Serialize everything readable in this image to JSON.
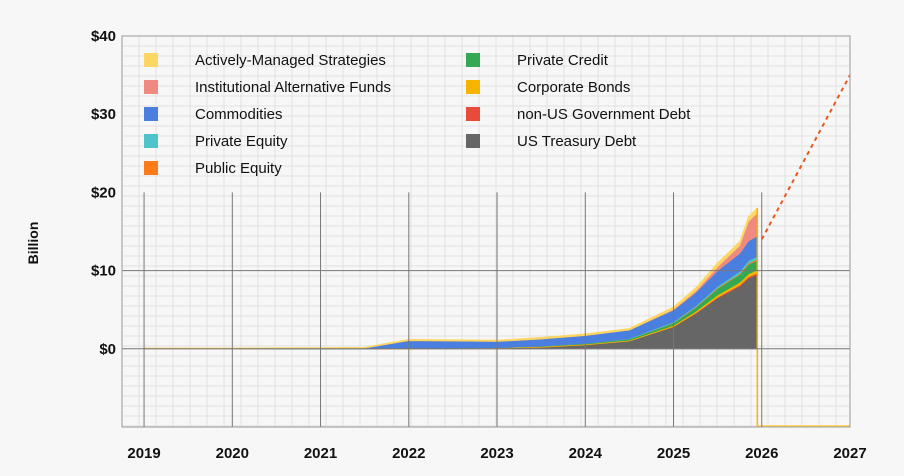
{
  "chart_data": {
    "type": "area",
    "ylabel": "Billion",
    "xlabel": "",
    "title": "",
    "x_ticks": [
      "2019",
      "2020",
      "2021",
      "2022",
      "2023",
      "2024",
      "2025",
      "2026",
      "2027"
    ],
    "y_ticks": [
      "$0",
      "$10",
      "$20",
      "$30",
      "$40"
    ],
    "legend_placement": "top-left",
    "grid": true,
    "x": [
      2019.0,
      2020.0,
      2021.0,
      2021.5,
      2022.0,
      2022.5,
      2023.0,
      2023.5,
      2024.0,
      2024.5,
      2025.0,
      2025.25,
      2025.5,
      2025.75,
      2025.85,
      2025.95
    ],
    "series": [
      {
        "name": "US Treasury Debt",
        "color": "#666666",
        "values": [
          0,
          0,
          0,
          0,
          0,
          0.05,
          0.1,
          0.2,
          0.5,
          1.0,
          2.8,
          4.5,
          6.5,
          8.0,
          9.0,
          9.5
        ]
      },
      {
        "name": "non-US Government Debt",
        "color": "#e84b3a",
        "values": [
          0,
          0,
          0,
          0,
          0,
          0,
          0,
          0,
          0,
          0,
          0.05,
          0.08,
          0.1,
          0.15,
          0.2,
          0.2
        ]
      },
      {
        "name": "Corporate Bonds",
        "color": "#f4b400",
        "values": [
          0,
          0,
          0,
          0,
          0.05,
          0.05,
          0.05,
          0.1,
          0.1,
          0.1,
          0.15,
          0.2,
          0.3,
          0.35,
          0.4,
          0.4
        ]
      },
      {
        "name": "Private Credit",
        "color": "#34a853",
        "values": [
          0,
          0,
          0,
          0,
          0,
          0,
          0,
          0.05,
          0.1,
          0.15,
          0.3,
          0.5,
          0.8,
          1.0,
          1.2,
          1.2
        ]
      },
      {
        "name": "Public Equity",
        "color": "#fa7b17",
        "values": [
          0,
          0,
          0,
          0,
          0,
          0,
          0,
          0,
          0,
          0,
          0.05,
          0.05,
          0.1,
          0.1,
          0.15,
          0.15
        ]
      },
      {
        "name": "Private Equity",
        "color": "#4ec3c9",
        "values": [
          0,
          0,
          0,
          0,
          0,
          0,
          0,
          0,
          0,
          0.05,
          0.1,
          0.15,
          0.2,
          0.3,
          0.35,
          0.35
        ]
      },
      {
        "name": "Commodities",
        "color": "#4a7fe0",
        "values": [
          0,
          0,
          0.05,
          0.1,
          1.0,
          0.9,
          0.8,
          0.9,
          1.0,
          1.1,
          1.5,
          1.7,
          2.0,
          2.3,
          2.5,
          2.6
        ]
      },
      {
        "name": "Institutional Alternative Funds",
        "color": "#ee8a80",
        "values": [
          0,
          0,
          0,
          0,
          0,
          0,
          0,
          0,
          0,
          0,
          0.1,
          0.2,
          0.5,
          1.0,
          2.5,
          3.0
        ]
      },
      {
        "name": "Actively-Managed Strategies",
        "color": "#fdd663",
        "values": [
          0.1,
          0.1,
          0.1,
          0.1,
          0.15,
          0.15,
          0.15,
          0.2,
          0.2,
          0.2,
          0.3,
          0.4,
          0.5,
          0.5,
          0.6,
          0.6
        ]
      }
    ],
    "projection": {
      "color": "#e8571e",
      "from": [
        2026.0,
        14.0
      ],
      "to": [
        2027.0,
        35.0
      ]
    },
    "ylim": [
      -10,
      40
    ],
    "xlim": [
      2018.75,
      2027.0
    ]
  },
  "legend": {
    "left": [
      {
        "label": "Actively-Managed Strategies",
        "color": "#fdd663"
      },
      {
        "label": "Institutional Alternative Funds",
        "color": "#ee8a80"
      },
      {
        "label": "Commodities",
        "color": "#4a7fe0"
      },
      {
        "label": "Private Equity",
        "color": "#4ec3c9"
      },
      {
        "label": "Public Equity",
        "color": "#fa7b17"
      }
    ],
    "right": [
      {
        "label": "Private Credit",
        "color": "#34a853"
      },
      {
        "label": "Corporate Bonds",
        "color": "#f4b400"
      },
      {
        "label": "non-US Government Debt",
        "color": "#e84b3a"
      },
      {
        "label": "US Treasury Debt",
        "color": "#666666"
      }
    ]
  }
}
